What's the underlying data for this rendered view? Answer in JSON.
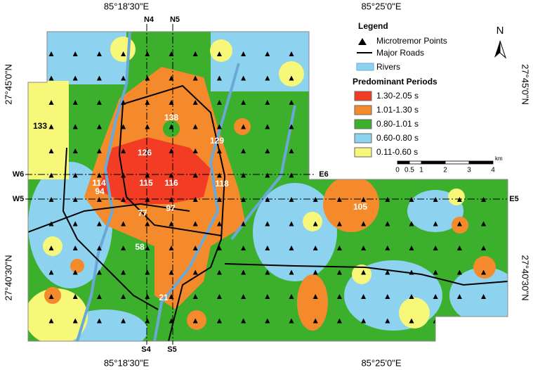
{
  "map": {
    "coordinates": {
      "top": [
        "85°18'30\"E",
        "85°25'0\"E"
      ],
      "bottom": [
        "85°18'30\"E",
        "85°25'0\"E"
      ],
      "left": [
        "27°45'0\"N",
        "27°40'30\"N"
      ],
      "right": [
        "27°45'0\"N",
        "27°40'30\"N"
      ]
    },
    "profiles": [
      "N4",
      "N5",
      "S4",
      "S5",
      "W6",
      "E6",
      "W5",
      "E5"
    ],
    "site_labels": [
      133,
      138,
      129,
      126,
      114,
      115,
      116,
      118,
      94,
      77,
      97,
      105,
      58,
      21
    ],
    "legend": {
      "title": "Legend",
      "items": [
        "Microtremor Points",
        "Major Roads",
        "Rivers"
      ],
      "period_title": "Predominant Periods",
      "periods": [
        {
          "label": "1.30-2.05 s",
          "color": "#f23c23"
        },
        {
          "label": "1.01-1.30 s",
          "color": "#f58a2c"
        },
        {
          "label": "0.80-1.01 s",
          "color": "#3cb02c"
        },
        {
          "label": "0.60-0.80 s",
          "color": "#8dd3f0"
        },
        {
          "label": "0.11-0.60 s",
          "color": "#f7f77a"
        }
      ]
    },
    "scale": {
      "ticks": [
        0,
        0.5,
        1,
        2,
        3,
        4
      ],
      "unit": "km"
    },
    "north": "N"
  }
}
